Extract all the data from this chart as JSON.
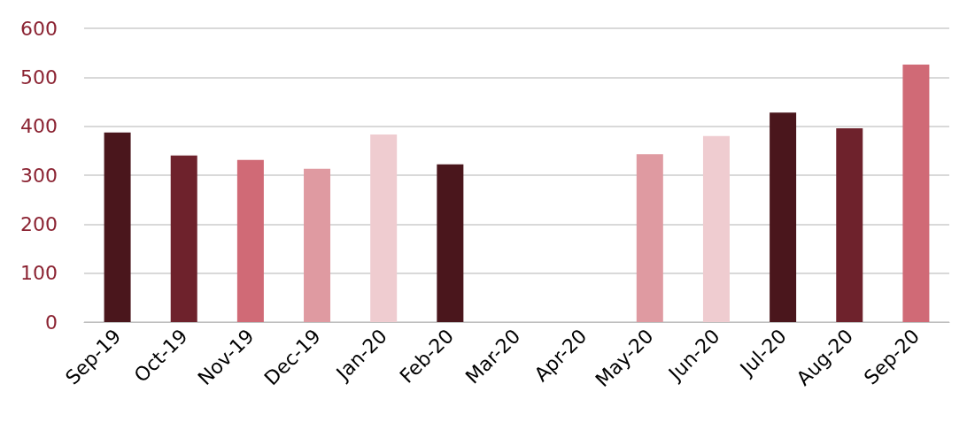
{
  "chart_data": {
    "type": "bar",
    "categories": [
      "Sep-19",
      "Oct-19",
      "Nov-19",
      "Dec-19",
      "Jan-20",
      "Feb-20",
      "Mar-20",
      "Apr-20",
      "May-20",
      "Jun-20",
      "Jul-20",
      "Aug-20",
      "Sep-20"
    ],
    "values": [
      387,
      340,
      331,
      313,
      383,
      322,
      null,
      null,
      343,
      380,
      428,
      396,
      526
    ],
    "colors": [
      "#4a161c",
      "#6e222c",
      "#d06a76",
      "#df9aa1",
      "#efccd0",
      "#4a161c",
      "#6e222c",
      "#d06a76",
      "#df9aa1",
      "#efccd0",
      "#4a161c",
      "#6e222c",
      "#d06a76"
    ],
    "ylim": [
      0,
      600
    ],
    "yticks": [
      0,
      100,
      200,
      300,
      400,
      500,
      600
    ],
    "grid": "y"
  }
}
